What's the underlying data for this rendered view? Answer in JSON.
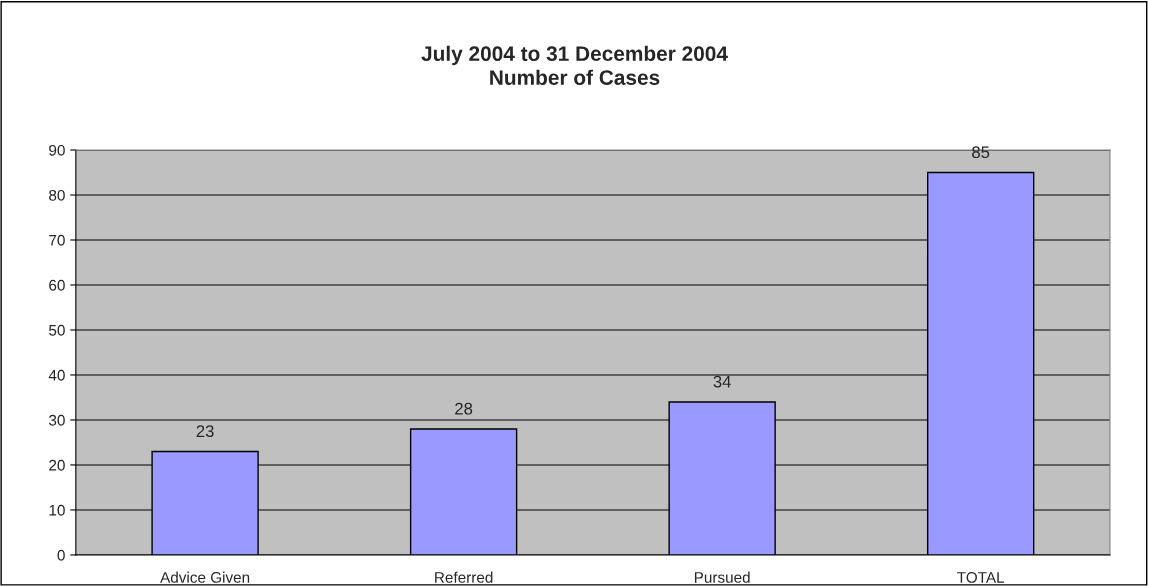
{
  "chart_data": {
    "type": "bar",
    "title": "July 2004 to 31 December 2004\nNumber of Cases",
    "categories": [
      "Advice Given",
      "Referred",
      "Pursued",
      "TOTAL"
    ],
    "values": [
      23,
      28,
      34,
      85
    ],
    "color": "#9999ff",
    "ylim": [
      0,
      90
    ],
    "yticks": [
      0,
      10,
      20,
      30,
      40,
      50,
      60,
      70,
      80,
      90
    ],
    "grid": "y",
    "data_labels": true
  }
}
